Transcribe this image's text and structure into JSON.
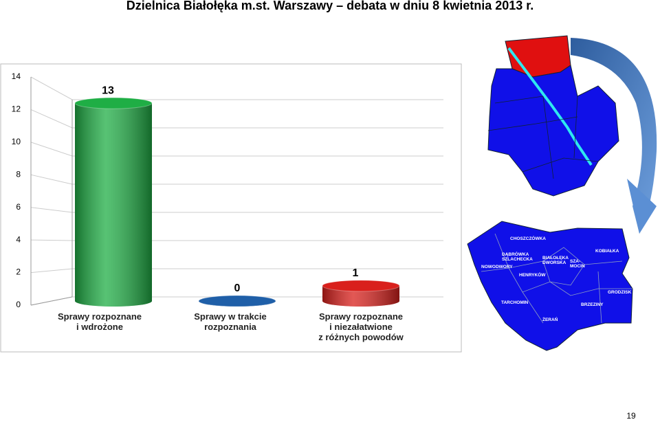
{
  "slide_title": "Dzielnica Białołęka m.st. Warszawy – debata w dniu 8 kwietnia 2013 r.",
  "page_number": "19",
  "map": {
    "districts": [
      "CHOSZCZÓWKA",
      "DĄBRÓWKA\nSZLACHECKA",
      "BIAŁOŁĘKA\nDWORSKA",
      "SZA-\nMOCIN",
      "KOBIAŁKA",
      "NOWODWORY",
      "HENRYKÓW",
      "GRODZISK",
      "TARCHOMIN",
      "BRZEZINY",
      "ŻERAŃ"
    ]
  },
  "chart_data": {
    "type": "bar",
    "categories": [
      "Sprawy rozpoznane\ni wdrożone",
      "Sprawy w trakcie\nrozpoznania",
      "Sprawy rozpoznane\ni niezałatwione\nz różnych powodów"
    ],
    "values": [
      13,
      0,
      1
    ],
    "colors": [
      "#1fae45",
      "#1f5fa8",
      "#d9201c"
    ],
    "ylim": [
      0,
      14
    ],
    "yticks": [
      0,
      2,
      4,
      6,
      8,
      10,
      12,
      14
    ],
    "grid": true
  }
}
